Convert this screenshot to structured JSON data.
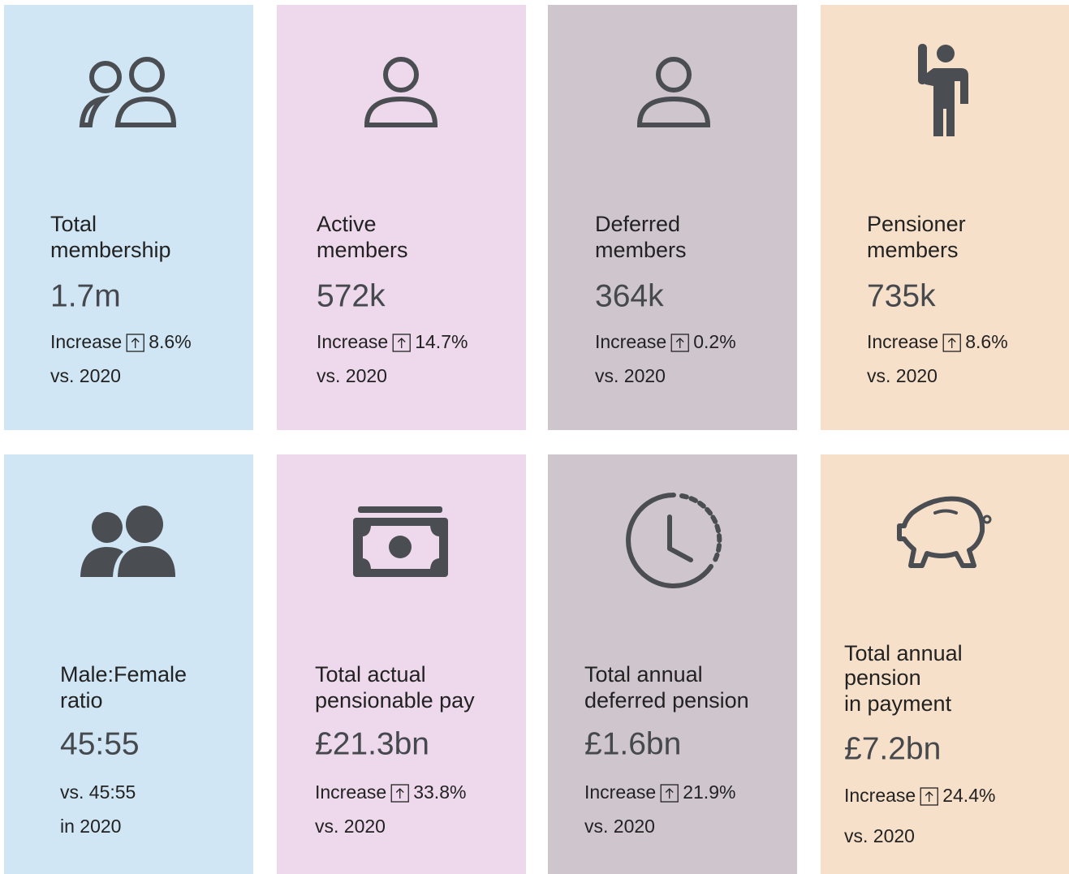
{
  "cards": [
    {
      "title": [
        "Total",
        "membership"
      ],
      "value": "1.7m",
      "change": {
        "label": "Increase",
        "value": "8.6%"
      },
      "note": [
        "vs. 2020"
      ]
    },
    {
      "title": [
        "Active",
        "members"
      ],
      "value": "572k",
      "change": {
        "label": "Increase",
        "value": "14.7%"
      },
      "note": [
        "vs. 2020"
      ]
    },
    {
      "title": [
        "Deferred",
        "members"
      ],
      "value": "364k",
      "change": {
        "label": "Increase",
        "value": "0.2%"
      },
      "note": [
        "vs. 2020"
      ]
    },
    {
      "title": [
        "Pensioner",
        "members"
      ],
      "value": "735k",
      "change": {
        "label": "Increase",
        "value": "8.6%"
      },
      "note": [
        "vs. 2020"
      ]
    },
    {
      "title": [
        "Male:Female",
        "ratio"
      ],
      "value": "45:55",
      "note": [
        "vs. 45:55",
        "in 2020"
      ]
    },
    {
      "title": [
        "Total actual",
        "pensionable pay"
      ],
      "value": "£21.3bn",
      "change": {
        "label": "Increase",
        "value": "33.8%"
      },
      "note": [
        "vs. 2020"
      ]
    },
    {
      "title": [
        "Total annual",
        "deferred pension"
      ],
      "value": "£1.6bn",
      "change": {
        "label": "Increase",
        "value": "21.9%"
      },
      "note": [
        "vs. 2020"
      ]
    },
    {
      "title": [
        "Total annual",
        "pension",
        "in payment"
      ],
      "value": "£7.2bn",
      "change": {
        "label": "Increase",
        "value": "24.4%"
      },
      "note": [
        "vs. 2020"
      ]
    }
  ]
}
